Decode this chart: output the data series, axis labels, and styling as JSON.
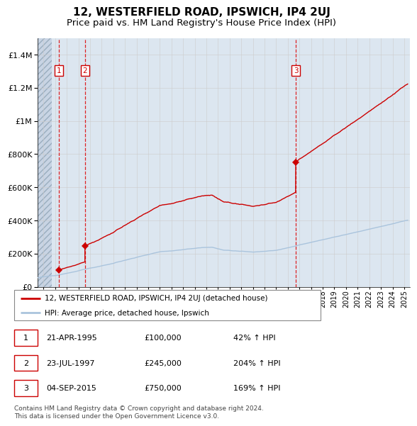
{
  "title": "12, WESTERFIELD ROAD, IPSWICH, IP4 2UJ",
  "subtitle": "Price paid vs. HM Land Registry's House Price Index (HPI)",
  "ylim": [
    0,
    1500000
  ],
  "yticks": [
    0,
    200000,
    400000,
    600000,
    800000,
    1000000,
    1200000,
    1400000
  ],
  "ytick_labels": [
    "£0",
    "£200K",
    "£400K",
    "£600K",
    "£800K",
    "£1M",
    "£1.2M",
    "£1.4M"
  ],
  "xlim_start": 1993.5,
  "xlim_end": 2025.5,
  "sale_dates": [
    1995.31,
    1997.56,
    2015.68
  ],
  "sale_prices": [
    100000,
    245000,
    750000
  ],
  "sale_labels": [
    "1",
    "2",
    "3"
  ],
  "hpi_line_color": "#aac4dd",
  "sale_line_color": "#cc0000",
  "background_fill_color": "#dce6f0",
  "grid_color": "#cccccc",
  "legend_line1": "12, WESTERFIELD ROAD, IPSWICH, IP4 2UJ (detached house)",
  "legend_line2": "HPI: Average price, detached house, Ipswich",
  "table_rows": [
    [
      "1",
      "21-APR-1995",
      "£100,000",
      "42% ↑ HPI"
    ],
    [
      "2",
      "23-JUL-1997",
      "£245,000",
      "204% ↑ HPI"
    ],
    [
      "3",
      "04-SEP-2015",
      "£750,000",
      "169% ↑ HPI"
    ]
  ],
  "footnote": "Contains HM Land Registry data © Crown copyright and database right 2024.\nThis data is licensed under the Open Government Licence v3.0.",
  "title_fontsize": 11,
  "subtitle_fontsize": 9.5
}
